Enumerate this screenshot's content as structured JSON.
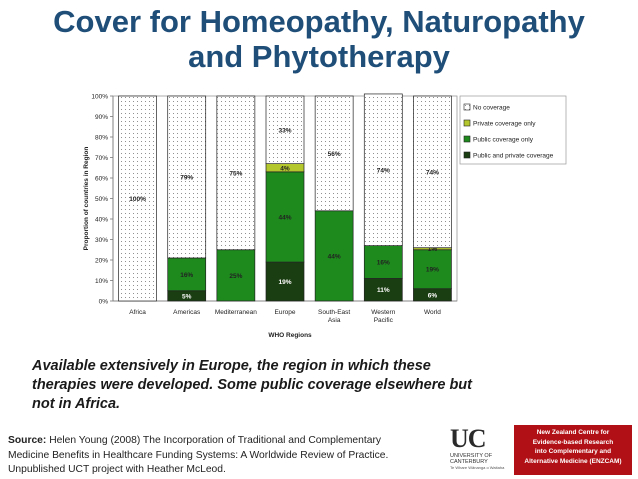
{
  "slide": {
    "title_line1": "Cover for Homeopathy, Naturopathy",
    "title_line2": "and Phytotherapy",
    "caption_line1": "Available extensively in Europe, the region in which these",
    "caption_line2": "therapies were developed. Some public coverage elsewhere but",
    "caption_line3": "not in Africa.",
    "source_label": "Source:",
    "source_line1": "Helen Young (2008) The Incorporation of Traditional and Complementary",
    "source_line2": "Medicine Benefits in Healthcare Funding Systems: A Worldwide Review of Practice.",
    "source_line3": "Unpublished UCT project with Heather McLeod."
  },
  "logo": {
    "letters": "UC",
    "name": "UNIVERSITY OF CANTERBURY",
    "subtitle": "Te Whare Wānanga o Waitaha"
  },
  "centre": {
    "line1": "New Zealand Centre for",
    "line2": "Evidence-based Research",
    "line3": "into Complementary and",
    "line4": "Alternative Medicine (ENZCAM)"
  },
  "chart_data": {
    "type": "bar",
    "stacked": true,
    "percent": true,
    "xlabel": "WHO Regions",
    "ylabel": "Proportion of countries in Region",
    "ylim": [
      0,
      100
    ],
    "yticks": [
      0,
      10,
      20,
      30,
      40,
      50,
      60,
      70,
      80,
      90,
      100
    ],
    "categories": [
      "Africa",
      "Americas",
      "Mediterranean",
      "Europe",
      "South-East Asia",
      "Western Pacific",
      "World"
    ],
    "series": [
      {
        "name": "Public and private coverage",
        "color": "#1b3d12",
        "values": [
          0,
          5,
          0,
          19,
          0,
          11,
          6
        ],
        "labels": [
          "",
          "5%",
          "",
          "19%",
          "",
          "11%",
          "6%"
        ]
      },
      {
        "name": "Public coverage only",
        "color": "#1e8a1e",
        "values": [
          0,
          16,
          25,
          44,
          44,
          16,
          19
        ],
        "labels": [
          "",
          "16%",
          "25%",
          "44%",
          "44%",
          "16%",
          "19%"
        ]
      },
      {
        "name": "Private coverage only",
        "color": "#b4c82e",
        "values": [
          0,
          0,
          0,
          4,
          0,
          0,
          1
        ],
        "labels": [
          "",
          "",
          "",
          "4%",
          "",
          "",
          "1%"
        ]
      },
      {
        "name": "No coverage",
        "color": "#ffffff",
        "pattern": "dotted",
        "values": [
          100,
          79,
          75,
          33,
          56,
          74,
          74
        ],
        "labels": [
          "100%",
          "79%",
          "75%",
          "33%",
          "56%",
          "74%",
          "74%"
        ]
      }
    ],
    "legend_position": "right",
    "legend_order": [
      "No coverage",
      "Private coverage only",
      "Public coverage only",
      "Public and private coverage"
    ],
    "grid": false
  }
}
